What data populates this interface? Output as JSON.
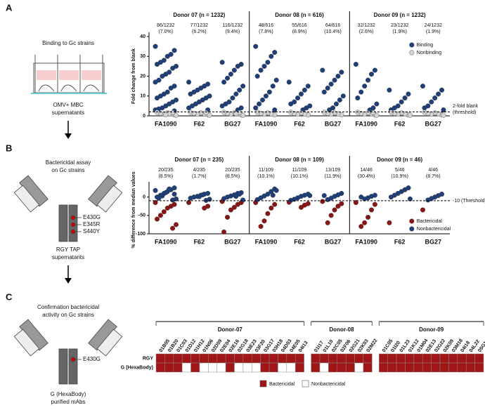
{
  "panel_a": {
    "label": "A",
    "step_title": "Binding to Gc strains",
    "step_source": [
      "OMV+ MBC",
      "supernatants"
    ],
    "chart": {
      "type": "strip",
      "ylabel": "Fold change from blank",
      "ylim": [
        0,
        40
      ],
      "yticks": [
        0,
        10,
        20,
        30,
        40
      ],
      "threshold": 2,
      "threshold_label": [
        "2-fold blank",
        "(threshold)"
      ],
      "legend": [
        {
          "name": "Binding",
          "color": "#1f3f7a"
        },
        {
          "name": "Nonbinding",
          "color": "#d4d4d4"
        }
      ],
      "donors": [
        {
          "title": "Donor 07 (n = 1232)",
          "groups": [
            {
              "name": "FA1090",
              "count": "86/1232",
              "pct": "(7.0%)",
              "points": [
                [
                  35,
                  33,
                  31,
                  30,
                  28,
                  27,
                  26,
                  25,
                  24,
                  22,
                  21,
                  20,
                  18,
                  17,
                  15,
                  14,
                  12,
                  11,
                  10,
                  9,
                  8,
                  7,
                  6,
                  5,
                  4,
                  3.5,
                  3,
                  2.5
                ],
                [
                  0.5,
                  1,
                  1.5,
                  0.8,
                  1.2,
                  1.8,
                  0.3,
                  1.6,
                  1.1,
                  0.6
                ]
              ]
            },
            {
              "name": "F62",
              "count": "77/1232",
              "pct": "(6.2%)",
              "points": [
                [
                  17,
                  16,
                  15,
                  14,
                  13,
                  12,
                  11,
                  10,
                  9,
                  8,
                  7,
                  6,
                  5,
                  4,
                  3
                ],
                [
                  0.5,
                  1,
                  1.5,
                  0.8,
                  1.2,
                  1.8,
                  0.3,
                  1.6
                ]
              ]
            },
            {
              "name": "BG27",
              "count": "116/1232",
              "pct": "(9.4%)",
              "points": [
                [
                  27,
                  26,
                  25,
                  23,
                  21,
                  19,
                  17,
                  15,
                  13,
                  11,
                  9,
                  7,
                  6,
                  5,
                  4,
                  3
                ],
                [
                  0.5,
                  1,
                  1.5,
                  0.8,
                  1.2,
                  1.8,
                  0.3,
                  1.6,
                  1.1
                ]
              ]
            }
          ]
        },
        {
          "title": "Donor 08 (n = 616)",
          "groups": [
            {
              "name": "FA1090",
              "count": "48/616",
              "pct": "(7.8%)",
              "points": [
                [
                  35,
                  32,
                  30,
                  27,
                  25,
                  23,
                  20,
                  18,
                  15,
                  12,
                  10,
                  8,
                  6,
                  4,
                  3
                ],
                [
                  0.5,
                  1,
                  1.5,
                  0.8,
                  1.2,
                  1.8
                ]
              ]
            },
            {
              "name": "F62",
              "count": "55/616",
              "pct": "(8.9%)",
              "points": [
                [
                  17,
                  15,
                  13,
                  11,
                  9,
                  7,
                  6,
                  5,
                  4,
                  3
                ],
                [
                  0.5,
                  1,
                  1.5,
                  0.8,
                  1.2,
                  1.8
                ]
              ]
            },
            {
              "name": "BG27",
              "count": "64/616",
              "pct": "(10.4%)",
              "points": [
                [
                  23,
                  22,
                  20,
                  18,
                  16,
                  14,
                  12,
                  10,
                  8,
                  6,
                  4,
                  3
                ],
                [
                  0.5,
                  1,
                  1.5,
                  0.8,
                  1.2,
                  1.8
                ]
              ]
            }
          ]
        },
        {
          "title": "Donor 09 (n = 1232)",
          "groups": [
            {
              "name": "FA1090",
              "count": "32/1232",
              "pct": "(2.6%)",
              "points": [
                [
                  26,
                  23,
                  21,
                  18,
                  15,
                  12,
                  9,
                  6,
                  4,
                  3
                ],
                [
                  0.5,
                  1,
                  1.5,
                  0.8,
                  1.2,
                  1.8,
                  0.3,
                  1.6
                ]
              ]
            },
            {
              "name": "F62",
              "count": "23/1232",
              "pct": "(1.9%)",
              "points": [
                [
                  13,
                  11,
                  9,
                  7,
                  5,
                  4,
                  3
                ],
                [
                  0.5,
                  1,
                  1.5,
                  0.8,
                  1.2,
                  1.8,
                  0.3
                ]
              ]
            },
            {
              "name": "BG27",
              "count": "24/1232",
              "pct": "(1.9%)",
              "points": [
                [
                  15,
                  13,
                  11,
                  9,
                  7,
                  5,
                  4,
                  3
                ],
                [
                  0.5,
                  1,
                  1.5,
                  0.8,
                  1.2,
                  1.8,
                  0.3
                ]
              ]
            }
          ]
        }
      ]
    }
  },
  "panel_b": {
    "label": "B",
    "step_title": [
      "Bactericidal assay",
      "on Gc strains"
    ],
    "mutations": [
      "E430G",
      "E345R",
      "S440Y"
    ],
    "step_source": [
      "RGY TAP",
      "supernatants"
    ],
    "chart": {
      "type": "strip",
      "ylabel": "% difference from median values",
      "ylim": [
        -100,
        30
      ],
      "yticks": [
        -100,
        -50,
        0
      ],
      "threshold": -10,
      "threshold_label": [
        "-10 (Threshold)"
      ],
      "legend": [
        {
          "name": "Bactericidal",
          "color": "#8b1515"
        },
        {
          "name": "Nonbactericidal",
          "color": "#1f3f7a"
        }
      ],
      "donors": [
        {
          "title": "Donor 07 (n = 235)",
          "groups": [
            {
              "name": "FA1090",
              "count": "20/235",
              "pct": "(8.5%)",
              "points": [
                [
                  -15,
                  -20,
                  -25,
                  -30,
                  -40,
                  -50,
                  -60,
                  -75,
                  -85
                ],
                [
                  25,
                  20,
                  15,
                  10,
                  5,
                  0,
                  -5,
                  -8,
                  22,
                  12,
                  3,
                  -3,
                  18,
                  8
                ]
              ]
            },
            {
              "name": "F62",
              "count": "4/235",
              "pct": "(1.7%)",
              "points": [
                [
                  -15,
                  -25,
                  -30
                ],
                [
                  10,
                  8,
                  5,
                  2,
                  0,
                  -3,
                  -6,
                  -9,
                  6,
                  1
                ]
              ]
            },
            {
              "name": "BG27",
              "count": "20/235",
              "pct": "(8.5%)",
              "points": [
                [
                  -12,
                  -15,
                  -20,
                  -28,
                  -35,
                  -55,
                  -95
                ],
                [
                  12,
                  10,
                  6,
                  3,
                  0,
                  -4,
                  -8,
                  8,
                  2
                ]
              ]
            }
          ]
        },
        {
          "title": "Donor 08 (n = 109)",
          "groups": [
            {
              "name": "FA1090",
              "count": "11/109",
              "pct": "(10.1%)",
              "points": [
                [
                  -15,
                  -20,
                  -30,
                  -45,
                  -65,
                  -80
                ],
                [
                  22,
                  15,
                  8,
                  3,
                  -2,
                  -7,
                  18,
                  5
                ]
              ]
            },
            {
              "name": "F62",
              "count": "11/109",
              "pct": "(10.1%)",
              "points": [
                [
                  -14,
                  -18,
                  -22,
                  -28
                ],
                [
                  8,
                  5,
                  2,
                  -2,
                  -6,
                  -9,
                  4
                ]
              ]
            },
            {
              "name": "BG27",
              "count": "13/109",
              "pct": "(11.9%)",
              "points": [
                [
                  -12,
                  -18,
                  -25,
                  -35,
                  -50,
                  -70
                ],
                [
                  10,
                  6,
                  2,
                  -3,
                  -7,
                  4
                ]
              ]
            }
          ]
        },
        {
          "title": "Donor 09 (n = 46)",
          "groups": [
            {
              "name": "FA1090",
              "count": "14/46",
              "pct": "(30.4%)",
              "points": [
                [
                  -15,
                  -20,
                  -35,
                  -55,
                  -70,
                  -80
                ],
                [
                  5,
                  2,
                  -2,
                  -5,
                  0
                ]
              ]
            },
            {
              "name": "F62",
              "count": "5/46",
              "pct": "(10.9%)",
              "points": [
                [
                  -70
                ],
                [
                  25,
                  20,
                  15,
                  10,
                  5,
                  0,
                  -5
                ]
              ]
            },
            {
              "name": "BG27",
              "count": "4/46",
              "pct": "(8.7%)",
              "points": [
                [
                  -35
                ],
                [
                  8,
                  4,
                  0,
                  -4,
                  -8
                ]
              ]
            }
          ]
        }
      ]
    }
  },
  "panel_c": {
    "label": "C",
    "step_title": [
      "Confirmation bactericidal",
      "activity on Gc strains"
    ],
    "mutation": "E430G",
    "step_source": [
      "G (HexaBody)",
      "purified mAbs"
    ],
    "heatmap": {
      "rows": [
        "RGY",
        "G (HexaBody)"
      ],
      "legend": [
        {
          "name": "Bactericidal",
          "color": "#a01515"
        },
        {
          "name": "Nonbactericidal",
          "color": "#ffffff"
        }
      ],
      "donors": [
        {
          "name": "Donor-07",
          "columns": [
            "01B05",
            "01B20",
            "01C03",
            "01D12",
            "01H12",
            "01N06",
            "02D09",
            "02E04",
            "02E16",
            "02G18",
            "03E23",
            "03F20",
            "03G17",
            "03H18",
            "04D03",
            "04E05",
            "04I13"
          ],
          "values": [
            [
              1,
              1,
              1,
              1,
              1,
              1,
              1,
              1,
              1,
              1,
              1,
              1,
              1,
              1,
              1,
              1,
              1
            ],
            [
              1,
              1,
              1,
              0,
              1,
              0,
              0,
              0,
              1,
              0,
              0,
              0,
              1,
              1,
              0,
              0,
              1
            ]
          ]
        },
        {
          "name": "Donor-08",
          "columns": [
            "01I17",
            "01L10",
            "02C05",
            "02F06",
            "02G21",
            "02K03",
            "02M22"
          ],
          "values": [
            [
              1,
              1,
              1,
              1,
              1,
              1,
              1
            ],
            [
              1,
              0,
              1,
              1,
              1,
              0,
              1
            ]
          ]
        },
        {
          "name": "Donor-09",
          "columns": [
            "01C05",
            "01I20",
            "01L23",
            "01K12",
            "01M04",
            "02E13",
            "02G22",
            "02K09",
            "03M18",
            "04I18",
            "04L22",
            "05G18"
          ],
          "values": [
            [
              1,
              1,
              1,
              1,
              1,
              1,
              1,
              1,
              1,
              1,
              1,
              1
            ],
            [
              1,
              1,
              1,
              1,
              1,
              1,
              1,
              1,
              1,
              1,
              1,
              1
            ]
          ]
        }
      ]
    }
  }
}
